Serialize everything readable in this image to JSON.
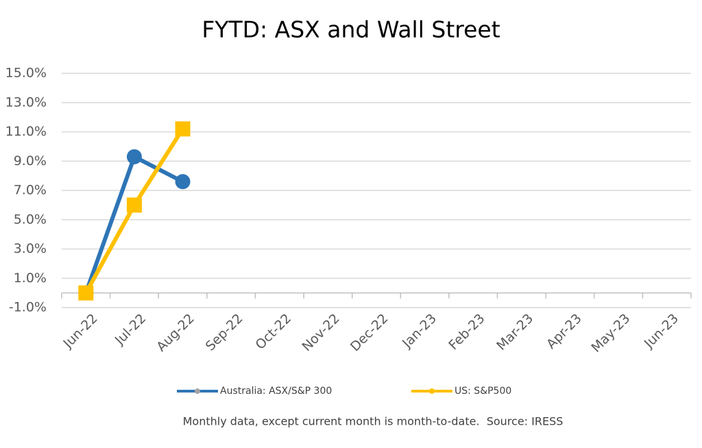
{
  "chart_data": {
    "type": "line",
    "title": "FYTD: ASX and Wall Street",
    "categories": [
      "Jun-22",
      "Jul-22",
      "Aug-22",
      "Sep-22",
      "Oct-22",
      "Nov-22",
      "Dec-22",
      "Jan-23",
      "Feb-23",
      "Mar-23",
      "Apr-23",
      "May-23",
      "Jun-23"
    ],
    "series": [
      {
        "name": "Australia: ASX/S&P 300",
        "color": "#2e75b6",
        "marker": "circle",
        "values": [
          0,
          9.3,
          7.6,
          null,
          null,
          null,
          null,
          null,
          null,
          null,
          null,
          null,
          null
        ]
      },
      {
        "name": "US: S&P500",
        "color": "#ffc000",
        "marker": "square",
        "values": [
          0,
          6.0,
          11.2,
          null,
          null,
          null,
          null,
          null,
          null,
          null,
          null,
          null,
          null
        ]
      }
    ],
    "ylim": [
      -1,
      15
    ],
    "yticks": [
      {
        "value": -1,
        "label": "-1.0%"
      },
      {
        "value": 1,
        "label": "1.0%"
      },
      {
        "value": 3,
        "label": "3.0%"
      },
      {
        "value": 5,
        "label": "5.0%"
      },
      {
        "value": 7,
        "label": "7.0%"
      },
      {
        "value": 9,
        "label": "9.0%"
      },
      {
        "value": 11,
        "label": "11.0%"
      },
      {
        "value": 13,
        "label": "13.0%"
      },
      {
        "value": 15,
        "label": "15.0%"
      }
    ],
    "grid": true,
    "legend": "bottom",
    "note": "Monthly data, except current month is month-to-date.  Source: IRESS"
  }
}
